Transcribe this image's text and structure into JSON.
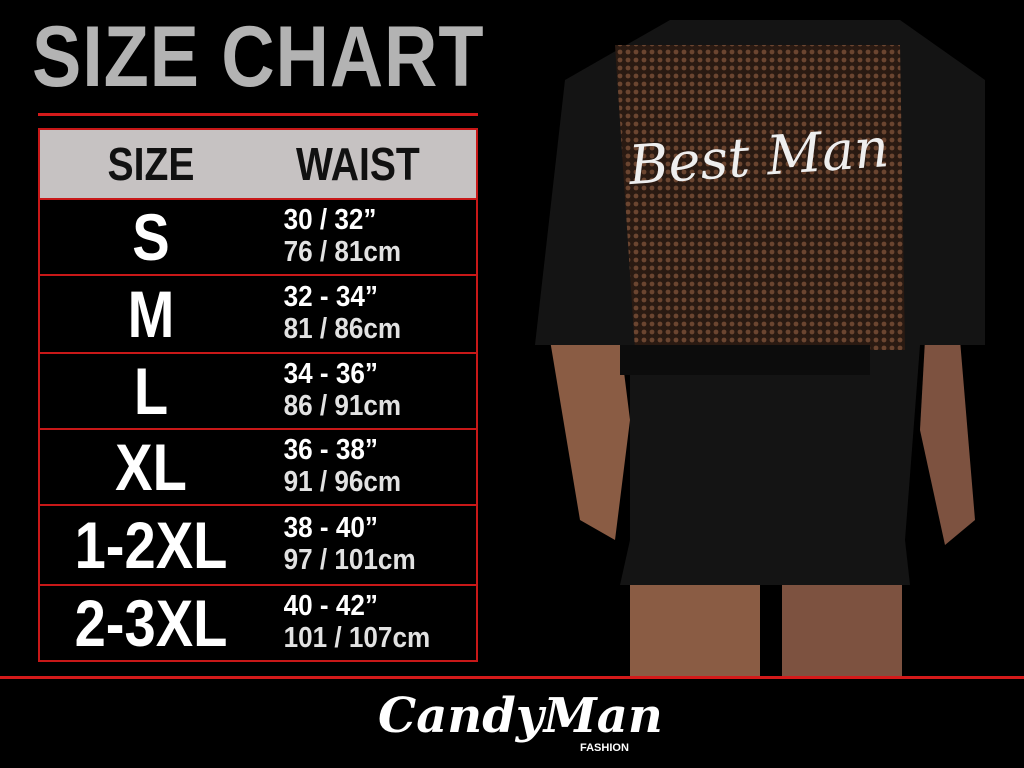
{
  "title": "SIZE CHART",
  "table": {
    "headers": [
      "SIZE",
      "WAIST"
    ],
    "rows": [
      {
        "size": "S",
        "inches": "30 / 32”",
        "cm": "76 / 81cm"
      },
      {
        "size": "M",
        "inches": "32 - 34”",
        "cm": "81 / 86cm"
      },
      {
        "size": "L",
        "inches": "34 - 36”",
        "cm": "86 / 91cm"
      },
      {
        "size": "XL",
        "inches": "36 - 38”",
        "cm": "91 / 96cm"
      },
      {
        "size": "1-2XL",
        "inches": "38 - 40”",
        "cm": "97 / 101cm"
      },
      {
        "size": "2-3XL",
        "inches": "40 - 42”",
        "cm": "101 / 107cm"
      }
    ]
  },
  "photo": {
    "garment_text": "Best Man"
  },
  "brand": {
    "name": "CandyMan",
    "sub": "FASHION"
  },
  "colors": {
    "accent": "#d41a1a",
    "header_bg": "#c6c2c2",
    "title": "#b3b3b3"
  }
}
